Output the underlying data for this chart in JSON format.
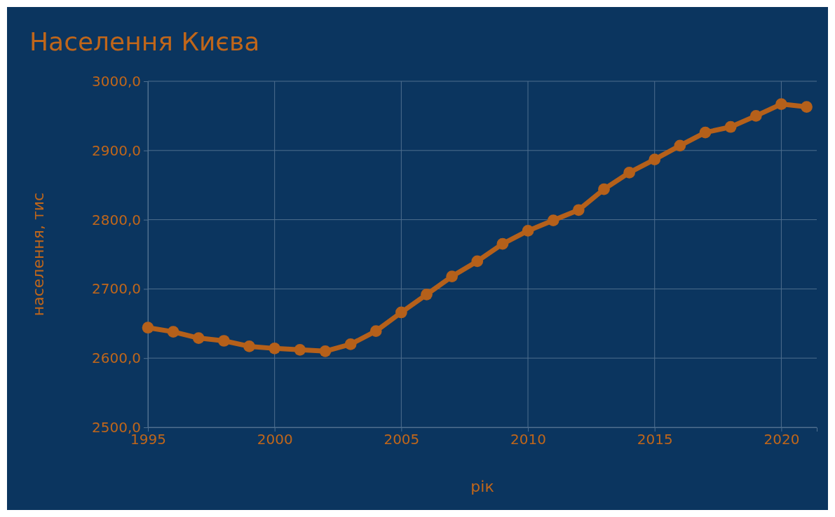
{
  "chart_data": {
    "type": "line",
    "title": "Населення Києва",
    "xlabel": "рік",
    "ylabel": "населення, тис",
    "x": [
      1995,
      1996,
      1997,
      1998,
      1999,
      2000,
      2001,
      2002,
      2003,
      2004,
      2005,
      2006,
      2007,
      2008,
      2009,
      2010,
      2011,
      2012,
      2013,
      2014,
      2015,
      2016,
      2017,
      2018,
      2019,
      2020,
      2021
    ],
    "series": [
      {
        "color": "#b5601a",
        "values": [
          2644,
          2638,
          2629,
          2625,
          2617,
          2614,
          2612,
          2610,
          2620,
          2639,
          2666,
          2692,
          2718,
          2740,
          2765,
          2784,
          2799,
          2814,
          2844,
          2868,
          2887,
          2907,
          2926,
          2934,
          2950,
          2967,
          2963
        ]
      }
    ],
    "xlim": [
      1995,
      2021.4
    ],
    "xticks": [
      1995,
      2000,
      2005,
      2010,
      2015,
      2020
    ],
    "ylim": [
      2500,
      3000
    ],
    "yticks": [
      {
        "value": 2500,
        "label": "2500,0"
      },
      {
        "value": 2600,
        "label": "2600,0"
      },
      {
        "value": 2700,
        "label": "2700,0"
      },
      {
        "value": 2800,
        "label": "2800,0"
      },
      {
        "value": 2900,
        "label": "2900,0"
      },
      {
        "value": 3000,
        "label": "3000,0"
      }
    ],
    "grid": true,
    "marker": "circle",
    "line_style": "solid"
  }
}
